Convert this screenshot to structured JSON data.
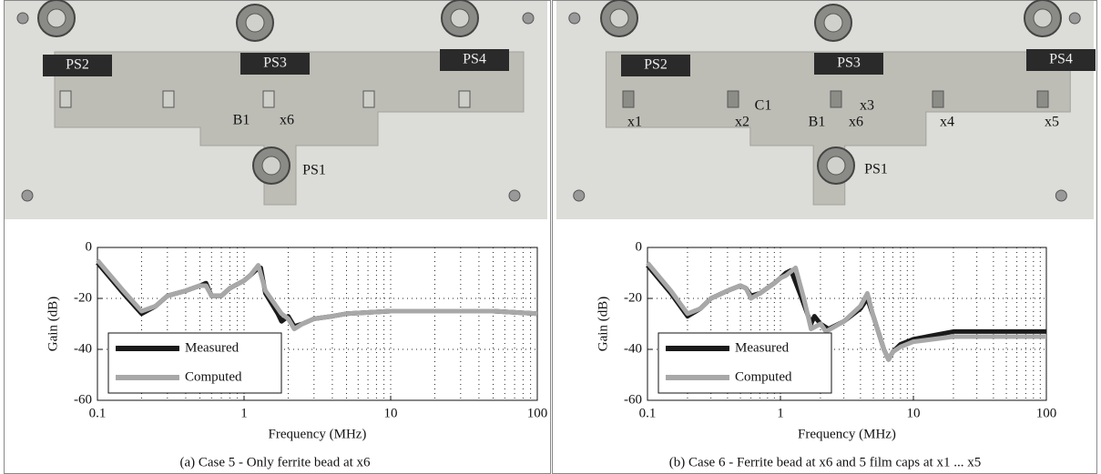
{
  "chart_data": [
    {
      "type": "line",
      "caption": "(a) Case 5 - Only ferrite bead at x6",
      "x_label": "Frequency (MHz)",
      "y_label": "Gain (dB)",
      "xscale": "log",
      "xlim": [
        0.1,
        100
      ],
      "xticks": [
        0.1,
        1,
        10,
        100
      ],
      "ylim": [
        -60,
        0
      ],
      "yticks": [
        0,
        -20,
        -40,
        -60
      ],
      "grid": true,
      "legend": "lower left",
      "series": [
        {
          "name": "Measured",
          "color": "#1a1a1a",
          "x": [
            0.1,
            0.15,
            0.2,
            0.25,
            0.3,
            0.4,
            0.5,
            0.55,
            0.6,
            0.7,
            0.8,
            1,
            1.1,
            1.2,
            1.3,
            1.4,
            1.7,
            1.8,
            2,
            2.2,
            2.5,
            3,
            4,
            5,
            10,
            50,
            100
          ],
          "values": [
            -6,
            -18,
            -26,
            -23,
            -19,
            -17,
            -15,
            -14,
            -19,
            -19,
            -16,
            -13,
            -11,
            -9,
            -8,
            -18,
            -26,
            -29,
            -27,
            -31,
            -30,
            -28,
            -27,
            -26,
            -25,
            -25,
            -26
          ]
        },
        {
          "name": "Computed",
          "color": "#a8a8a8",
          "x": [
            0.1,
            0.15,
            0.2,
            0.25,
            0.3,
            0.4,
            0.5,
            0.55,
            0.6,
            0.7,
            0.8,
            1,
            1.1,
            1.25,
            1.4,
            1.8,
            2,
            2.2,
            2.5,
            3,
            4,
            5,
            10,
            50,
            100
          ],
          "values": [
            -5,
            -17,
            -25,
            -23,
            -19,
            -17,
            -15,
            -15,
            -19,
            -19,
            -16,
            -13,
            -11,
            -7,
            -17,
            -26,
            -28,
            -32,
            -30,
            -28,
            -27,
            -26,
            -25,
            -25,
            -26
          ]
        }
      ]
    },
    {
      "type": "line",
      "caption": "(b) Case 6 - Ferrite bead at x6 and 5 film caps at x1 ... x5",
      "x_label": "Frequency (MHz)",
      "y_label": "Gain (dB)",
      "xscale": "log",
      "xlim": [
        0.1,
        100
      ],
      "xticks": [
        0.1,
        1,
        10,
        100
      ],
      "ylim": [
        -60,
        0
      ],
      "yticks": [
        0,
        -20,
        -40,
        -60
      ],
      "grid": true,
      "legend": "lower left",
      "series": [
        {
          "name": "Measured",
          "color": "#1a1a1a",
          "x": [
            0.1,
            0.15,
            0.2,
            0.25,
            0.3,
            0.4,
            0.5,
            0.55,
            0.6,
            0.7,
            0.9,
            1,
            1.1,
            1.2,
            1.4,
            1.7,
            1.8,
            2,
            2.3,
            3,
            4,
            4.5,
            5,
            6,
            6.5,
            7,
            8,
            10,
            20,
            50,
            100
          ],
          "values": [
            -7,
            -18,
            -27,
            -24,
            -20,
            -17,
            -15,
            -16,
            -19,
            -18,
            -14,
            -12,
            -10,
            -9,
            -18,
            -30,
            -27,
            -30,
            -32,
            -29,
            -24,
            -20,
            -27,
            -40,
            -44,
            -41,
            -38,
            -36,
            -33,
            -33,
            -33
          ]
        },
        {
          "name": "Computed",
          "color": "#a8a8a8",
          "x": [
            0.1,
            0.15,
            0.2,
            0.25,
            0.3,
            0.4,
            0.5,
            0.55,
            0.6,
            0.7,
            0.9,
            1,
            1.1,
            1.3,
            1.5,
            1.7,
            2,
            2.2,
            3,
            4,
            4.5,
            5,
            6,
            6.5,
            7,
            8,
            10,
            20,
            100
          ],
          "values": [
            -6,
            -17,
            -26,
            -24,
            -20,
            -17,
            -15,
            -16,
            -20,
            -18,
            -14,
            -12,
            -11,
            -8,
            -20,
            -32,
            -30,
            -33,
            -29,
            -23,
            -18,
            -27,
            -40,
            -44,
            -41,
            -39,
            -37,
            -35,
            -35
          ]
        }
      ]
    }
  ],
  "photos": [
    {
      "labels": [
        "PS2",
        "PS3",
        "PS4",
        "B1",
        "x6",
        "PS1"
      ]
    },
    {
      "labels": [
        "PS2",
        "PS3",
        "PS4",
        "x1",
        "C1",
        "x2",
        "x3",
        "B1",
        "x6",
        "x4",
        "x5",
        "PS1"
      ]
    }
  ]
}
